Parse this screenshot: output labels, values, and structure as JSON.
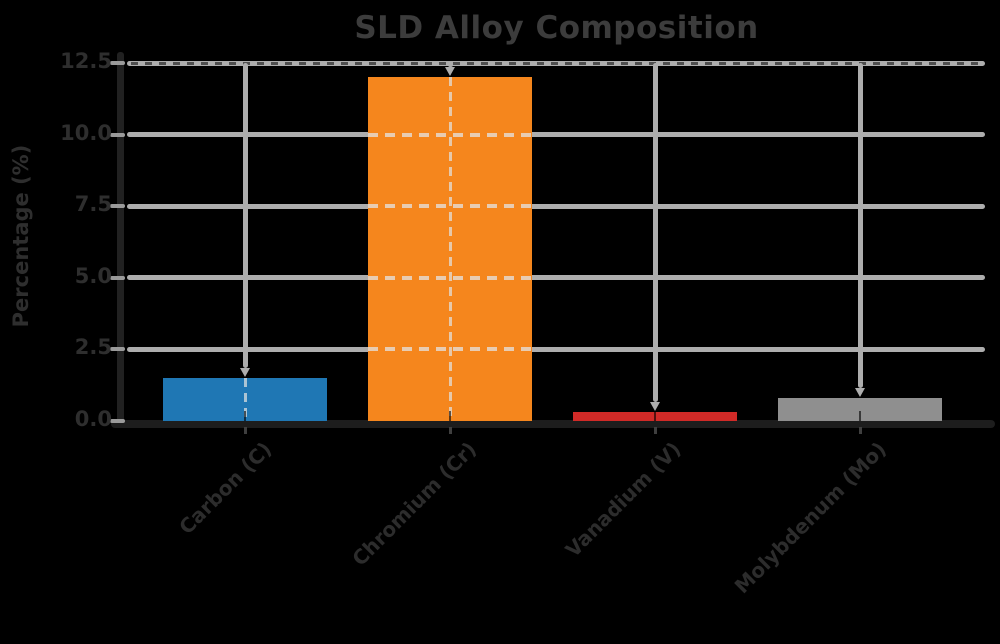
{
  "window": {
    "background_color": "#000000"
  },
  "chart_data": {
    "type": "bar",
    "title": "SLD Alloy Composition",
    "ylabel": "Percentage (%)",
    "xlabel": "",
    "categories": [
      "Carbon (C)",
      "Chromium (Cr)",
      "Vanadium (V)",
      "Molybdenum (Mo)"
    ],
    "values": [
      1.5,
      12.0,
      0.3,
      0.8
    ],
    "bar_colors": [
      "#1f77b4",
      "#f5861d",
      "#d12a27",
      "#8f8f8f"
    ],
    "yticks": [
      0.0,
      2.5,
      5.0,
      7.5,
      10.0,
      12.5
    ],
    "ytick_labels": [
      "0.0",
      "2.5",
      "5.0",
      "7.5",
      "10.0",
      "12.5"
    ],
    "ylim": [
      0,
      12.5
    ],
    "grid": "on",
    "grid_style": "solid-behind-bars-dashed-over-bars",
    "legend": "none",
    "colors": {
      "grid": "#adadad",
      "spine": "#1f1f1f",
      "tick_text": "#2e2e2e",
      "title_text": "#3c3c3c"
    }
  }
}
